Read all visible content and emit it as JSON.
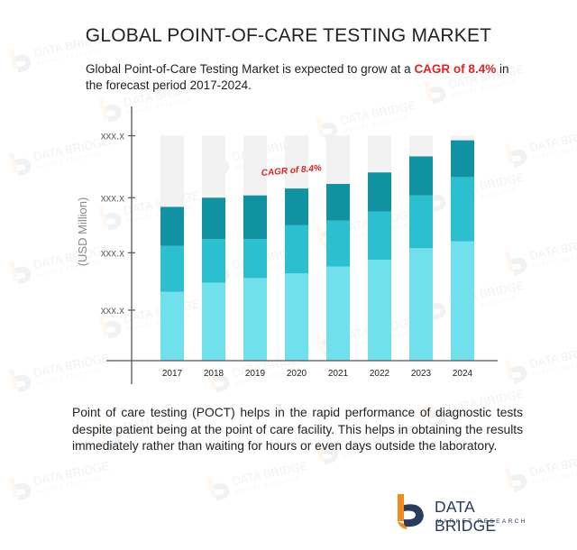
{
  "title": "GLOBAL POINT-OF-CARE TESTING MARKET",
  "subtitle": {
    "before": "Global Point-of-Care Testing Market is expected to grow at a ",
    "highlight": "CAGR of 8.4%",
    "after": " in the forecast period 2017-2024."
  },
  "description": "Point of care testing (POCT) helps in the rapid performance of diagnostic tests despite patient being at the point of care facility. This helps in obtaining the results immediately rather than waiting for hours or even days outside the laboratory.",
  "logo": {
    "name": "DATA BRIDGE",
    "tagline": "MARKET RESEARCH"
  },
  "watermark": {
    "name": "DATA BRIDGE",
    "tagline": "MARKET RESEARCH"
  },
  "colors": {
    "bar_light": "#70e0ec",
    "bar_mid": "#2cbfcf",
    "bar_dark": "#1192a3",
    "bar_background": "#f2f2f2",
    "axis": "#555555",
    "annotation": "#e02424",
    "logo_orange": "#f28a1e",
    "logo_navy": "#2a3b5c"
  },
  "chart_data": {
    "type": "bar",
    "stacked": true,
    "categories": [
      "2017",
      "2018",
      "2019",
      "2020",
      "2021",
      "2022",
      "2023",
      "2024"
    ],
    "series": [
      {
        "values": [
          30,
          34,
          36,
          38,
          41,
          44,
          49,
          52
        ]
      },
      {
        "values": [
          20,
          19,
          17,
          21,
          20,
          21,
          23,
          28
        ]
      },
      {
        "values": [
          17,
          18,
          19,
          16,
          16,
          17,
          17,
          16
        ]
      }
    ],
    "ylabel": "(USD Million)",
    "ytick_labels": [
      "xxx.x",
      "xxx.x",
      "xxx.x",
      "xxx.x"
    ],
    "ytick_values": [
      22,
      47,
      71,
      98
    ],
    "ylim": [
      0,
      110
    ],
    "background_bar_value": 98,
    "annotation": "CAGR of 8.4%",
    "grid": false,
    "legend": "none"
  }
}
